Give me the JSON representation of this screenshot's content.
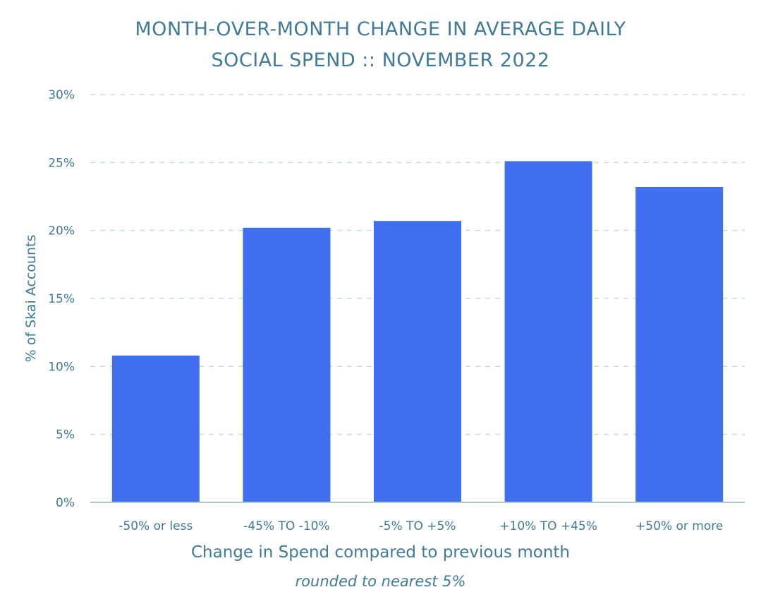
{
  "chart_data": {
    "type": "bar",
    "title_line1": "MONTH-OVER-MONTH CHANGE IN AVERAGE DAILY",
    "title_line2": "SOCIAL SPEND :: NOVEMBER 2022",
    "categories": [
      "-50% or less",
      "-45% TO -10%",
      "-5% TO +5%",
      "+10% TO +45%",
      "+50% or more"
    ],
    "values": [
      10.8,
      20.2,
      20.7,
      25.1,
      23.2
    ],
    "ylabel": "% of Skai Accounts",
    "xlabel": "Change in Spend compared to previous month",
    "xlabel_sub": "rounded to nearest 5%",
    "ylim": [
      0,
      30
    ],
    "yticks": [
      0,
      5,
      10,
      15,
      20,
      25,
      30
    ],
    "ytick_labels": [
      "0%",
      "5%",
      "10%",
      "15%",
      "20%",
      "25%",
      "30%"
    ],
    "grid": true,
    "colors": {
      "bar": "#3f6eee",
      "text": "#3f7a96",
      "grid": "#c7dcdc",
      "axis": "#b7c9d3"
    }
  }
}
